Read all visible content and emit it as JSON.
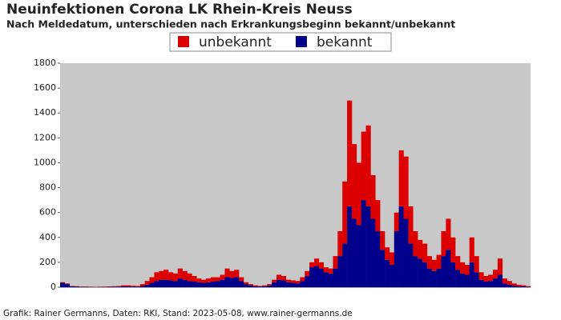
{
  "chart_data": {
    "type": "stacked_bar",
    "title": "Neuinfektionen Corona LK Rhein-Kreis Neuss",
    "subtitle": "Nach Meldedatum, unterschieden nach Erkrankungsbeginn bekannt/unbekannt",
    "footer": "Grafik: Rainer Germanns, Daten: RKI, Stand: 2023-05-08, www.rainer-germanns.de",
    "categories": [
      null,
      null,
      null,
      null,
      null,
      null,
      null,
      null,
      null,
      null,
      null,
      null,
      null,
      null,
      null,
      null,
      null,
      null,
      null,
      null,
      null,
      null,
      null,
      null,
      null,
      null,
      null,
      null,
      null,
      null,
      null,
      null,
      null,
      null,
      null,
      null,
      null,
      null,
      null,
      null,
      null,
      null,
      null,
      null,
      null,
      null,
      null,
      null,
      null,
      null,
      null,
      null,
      null,
      null,
      null,
      null,
      null,
      null,
      null,
      null,
      null,
      null,
      null,
      null,
      null,
      null,
      null,
      null,
      null,
      null,
      null,
      null,
      null,
      null,
      null,
      null,
      null,
      null,
      null,
      null,
      null,
      null,
      null,
      null,
      null,
      null,
      null,
      null,
      null,
      null,
      null,
      null,
      null,
      null,
      null,
      null,
      null,
      null,
      null,
      null
    ],
    "series": [
      {
        "name": "bekannt",
        "color": "#00008b",
        "values": [
          35,
          25,
          8,
          6,
          3,
          3,
          2,
          1,
          2,
          2,
          3,
          4,
          5,
          6,
          6,
          5,
          4,
          10,
          20,
          35,
          50,
          60,
          60,
          55,
          50,
          70,
          60,
          50,
          45,
          40,
          35,
          40,
          45,
          50,
          60,
          80,
          75,
          80,
          50,
          25,
          15,
          8,
          6,
          8,
          15,
          40,
          60,
          55,
          40,
          35,
          30,
          50,
          90,
          160,
          170,
          150,
          120,
          110,
          150,
          250,
          350,
          650,
          550,
          500,
          700,
          650,
          550,
          450,
          300,
          220,
          180,
          450,
          650,
          550,
          350,
          250,
          230,
          200,
          150,
          130,
          150,
          250,
          300,
          200,
          140,
          110,
          100,
          200,
          120,
          60,
          45,
          50,
          70,
          100,
          30,
          20,
          12,
          8,
          6,
          3
        ]
      },
      {
        "name": "unbekannt",
        "color": "#dd0000",
        "values": [
          5,
          5,
          2,
          2,
          2,
          2,
          2,
          2,
          2,
          3,
          3,
          4,
          5,
          9,
          9,
          7,
          6,
          15,
          30,
          45,
          70,
          70,
          80,
          65,
          60,
          80,
          70,
          60,
          45,
          30,
          25,
          30,
          35,
          30,
          40,
          70,
          55,
          60,
          30,
          15,
          10,
          7,
          4,
          7,
          10,
          20,
          40,
          35,
          20,
          20,
          20,
          30,
          40,
          40,
          60,
          50,
          40,
          40,
          100,
          200,
          500,
          850,
          600,
          500,
          550,
          650,
          350,
          250,
          150,
          100,
          100,
          150,
          450,
          500,
          300,
          200,
          150,
          150,
          100,
          90,
          110,
          200,
          250,
          200,
          110,
          90,
          80,
          200,
          130,
          60,
          45,
          50,
          70,
          130,
          40,
          30,
          18,
          12,
          9,
          5
        ]
      }
    ],
    "ylim": [
      0,
      1800
    ],
    "yticks": [
      0,
      200,
      400,
      600,
      800,
      1000,
      1200,
      1400,
      1600,
      1800
    ],
    "legend_order": [
      1,
      0
    ]
  }
}
